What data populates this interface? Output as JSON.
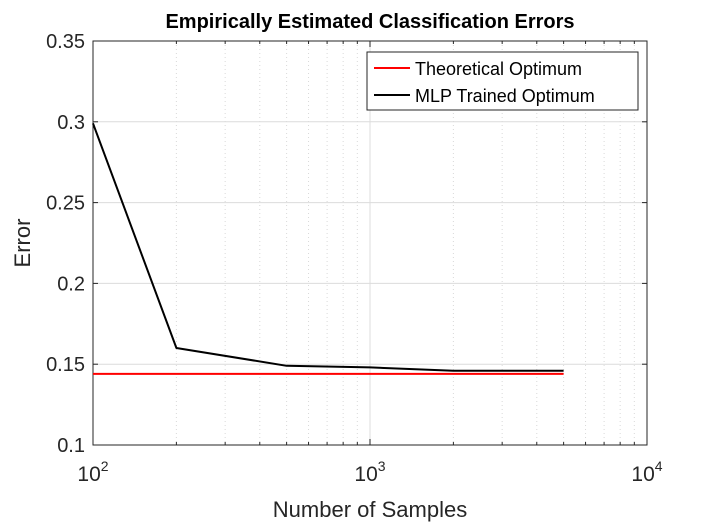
{
  "chart_data": {
    "type": "line",
    "title": "Empirically Estimated Classification Errors",
    "xlabel": "Number of Samples",
    "ylabel": "Error",
    "xscale": "log",
    "xlim": [
      100,
      10000
    ],
    "ylim": [
      0.1,
      0.35
    ],
    "grid": true,
    "minor_grid": true,
    "legend_position": "top-right",
    "x_ticks": [
      {
        "value": 100,
        "base": "10",
        "exp": "2"
      },
      {
        "value": 1000,
        "base": "10",
        "exp": "3"
      },
      {
        "value": 10000,
        "base": "10",
        "exp": "4"
      }
    ],
    "y_ticks": [
      {
        "value": 0.1,
        "label": "0.1"
      },
      {
        "value": 0.15,
        "label": "0.15"
      },
      {
        "value": 0.2,
        "label": "0.2"
      },
      {
        "value": 0.25,
        "label": "0.25"
      },
      {
        "value": 0.3,
        "label": "0.3"
      },
      {
        "value": 0.35,
        "label": "0.35"
      }
    ],
    "series": [
      {
        "name": "Theoretical Optimum",
        "color": "#ff0000",
        "x": [
          100,
          5000
        ],
        "y": [
          0.144,
          0.144
        ]
      },
      {
        "name": "MLP Trained Optimum",
        "color": "#000000",
        "x": [
          100,
          200,
          500,
          1000,
          2000,
          5000
        ],
        "y": [
          0.299,
          0.16,
          0.149,
          0.148,
          0.146,
          0.146
        ]
      }
    ]
  }
}
